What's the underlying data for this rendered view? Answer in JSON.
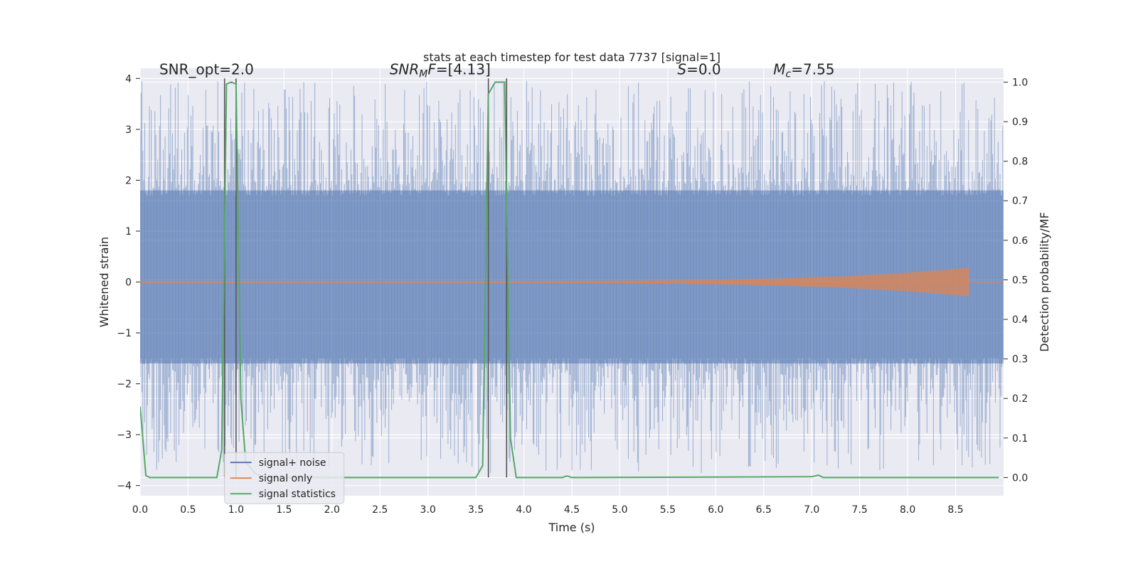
{
  "chart_data": {
    "type": "line",
    "title": "stats at each timestep for test data 7737 [signal=1]",
    "xlabel": "Time (s)",
    "ylabel_left": "Whitened strain",
    "ylabel_right": "Detection probability/MF",
    "xlim": [
      0.0,
      9.0
    ],
    "ylim_left": [
      -4.2,
      4.2
    ],
    "ylim_right": [
      -0.046,
      1.035
    ],
    "x_ticks": [
      "0.0",
      "0.5",
      "1.0",
      "1.5",
      "2.0",
      "2.5",
      "3.0",
      "3.5",
      "4.0",
      "4.5",
      "5.0",
      "5.5",
      "6.0",
      "6.5",
      "7.0",
      "7.5",
      "8.0",
      "8.5"
    ],
    "y_ticks_left": [
      "4",
      "3",
      "2",
      "1",
      "0",
      "−1",
      "−2",
      "−3",
      "−4"
    ],
    "y_ticks_right": [
      "1.0",
      "0.9",
      "0.8",
      "0.7",
      "0.6",
      "0.5",
      "0.4",
      "0.3",
      "0.2",
      "0.1",
      "0.0"
    ],
    "grid": true,
    "legend_position": "lower-left",
    "annotations": {
      "snr_opt": "SNR_opt=2.0",
      "snr_mf_main": "SNR",
      "snr_mf_sub": "M",
      "snr_mf_rest": "F=[4.13]",
      "s_italic": "S",
      "s_rest": "=0.0",
      "mc_main": "M",
      "mc_sub": "c",
      "mc_rest": "=7.55"
    },
    "colors": {
      "noise": "#4c72b0",
      "signal_only": "#dd8452",
      "statistics": "#55a868",
      "vlines": "#555555",
      "background": "#eaeaf2",
      "grid": "#ffffff"
    },
    "series": [
      {
        "name": "signal+ noise",
        "axis": "left",
        "description_range": {
          "x_start": 0.0,
          "x_end": 9.0,
          "band_typical": [
            -1.9,
            2.1
          ],
          "peak_max": 3.95,
          "peak_min": -3.75
        }
      },
      {
        "name": "signal only",
        "axis": "left",
        "chirp": {
          "start": 0.0,
          "end": 8.65,
          "final_amplitude": 0.27
        }
      },
      {
        "name": "signal statistics",
        "axis": "right",
        "x": [
          0.0,
          0.06,
          0.1,
          0.2,
          0.8,
          0.85,
          0.9,
          0.95,
          1.0,
          1.05,
          1.1,
          1.2,
          1.3,
          3.5,
          3.57,
          3.63,
          3.7,
          3.8,
          3.86,
          3.92,
          4.4,
          4.45,
          4.5,
          7.0,
          7.07,
          7.12,
          8.95
        ],
        "y": [
          0.18,
          0.005,
          0.0,
          0.0,
          0.0,
          0.07,
          0.995,
          1.0,
          0.995,
          0.2,
          0.04,
          0.01,
          0.0,
          0.0,
          0.03,
          0.97,
          1.0,
          1.0,
          0.1,
          0.0,
          0.0,
          0.004,
          0.0,
          0.002,
          0.006,
          0.0,
          0.0
        ]
      }
    ],
    "vlines": [
      0.88,
      1.0,
      3.63,
      3.82
    ]
  },
  "legend": {
    "items": [
      {
        "label": "signal+ noise",
        "color": "#4c72b0"
      },
      {
        "label": "signal only",
        "color": "#dd8452"
      },
      {
        "label": "signal statistics",
        "color": "#55a868"
      }
    ]
  }
}
